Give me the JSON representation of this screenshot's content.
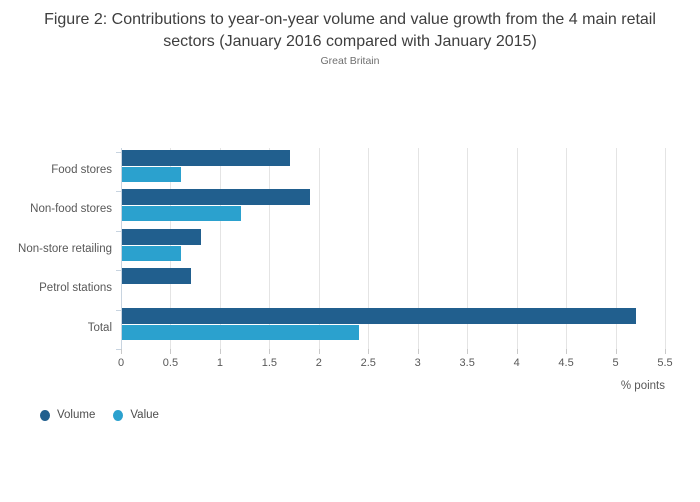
{
  "title": "Figure 2: Contributions to year-on-year volume and value growth from the 4 main retail sectors (January 2016 compared with January 2015)",
  "subtitle": "Great Britain",
  "chart_data": {
    "type": "bar",
    "orientation": "horizontal",
    "title": "Figure 2: Contributions to year-on-year volume and value growth from the 4 main retail sectors (January 2016 compared with January 2015)",
    "subtitle": "Great Britain",
    "categories": [
      "Food stores",
      "Non-food stores",
      "Non-store retailing",
      "Petrol stations",
      "Total"
    ],
    "series": [
      {
        "name": "Volume",
        "color": "#215F8E",
        "values": [
          1.7,
          1.9,
          0.8,
          0.7,
          5.2
        ]
      },
      {
        "name": "Value",
        "color": "#2BA1CE",
        "values": [
          0.6,
          1.2,
          0.6,
          0.0,
          2.4
        ]
      }
    ],
    "xlabel": "% points",
    "xlim": [
      0,
      5.5
    ],
    "xticks": [
      "0",
      "0.5",
      "1",
      "1.5",
      "2",
      "2.5",
      "3",
      "3.5",
      "4",
      "4.5",
      "5",
      "5.5"
    ],
    "grid": true,
    "gridline_color": "#e4e4e4",
    "axis_color": "#c8d4e0",
    "legend_position": "bottom-left"
  }
}
